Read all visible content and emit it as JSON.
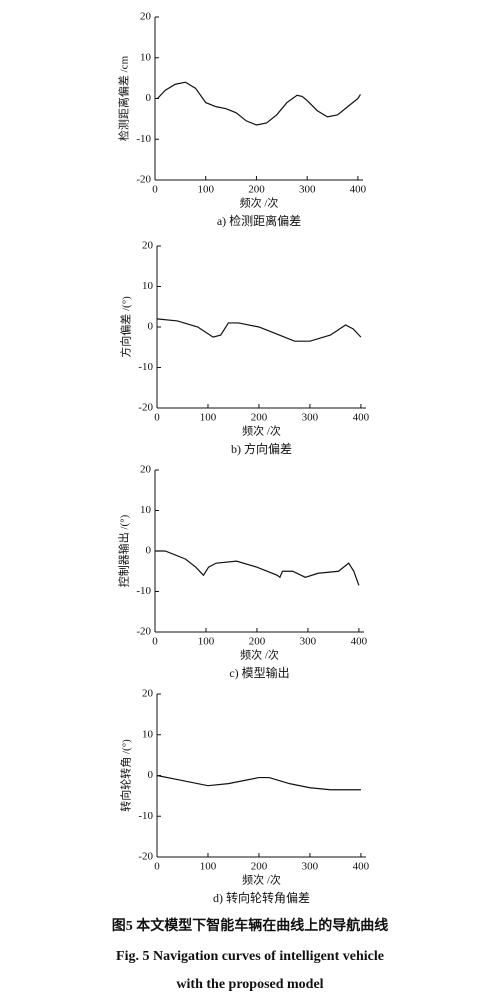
{
  "chart_data": [
    {
      "type": "line",
      "ylabel": "检测距离偏差 /cm",
      "xlabel": "频次 /次",
      "caption": "a) 检测距离偏差",
      "x": [
        5,
        20,
        40,
        60,
        80,
        100,
        120,
        140,
        160,
        180,
        200,
        220,
        240,
        260,
        280,
        290,
        300,
        320,
        340,
        360,
        380,
        400,
        405
      ],
      "values": [
        0,
        2,
        3.5,
        4,
        2.5,
        -1,
        -2,
        -2.5,
        -3.5,
        -5.5,
        -6.5,
        -6,
        -4,
        -1,
        0.8,
        0.5,
        -0.5,
        -3,
        -4.5,
        -4,
        -2,
        0,
        1
      ],
      "color": "#111111",
      "xlim": [
        0,
        410
      ],
      "ylim": [
        -20,
        20
      ],
      "xticks": [
        0,
        100,
        200,
        300,
        400
      ],
      "yticks": [
        20,
        10,
        0,
        -10,
        -20
      ]
    },
    {
      "type": "line",
      "ylabel": "方向偏差 /(°)",
      "xlabel": "频次 /次",
      "caption": "b) 方向偏差",
      "x": [
        0,
        40,
        80,
        110,
        125,
        140,
        160,
        200,
        240,
        270,
        300,
        340,
        370,
        385,
        400
      ],
      "values": [
        2,
        1.5,
        0,
        -2.5,
        -2,
        1,
        1,
        0,
        -2,
        -3.5,
        -3.5,
        -2,
        0.5,
        -0.5,
        -2.5
      ],
      "color": "#111111",
      "xlim": [
        0,
        410
      ],
      "ylim": [
        -20,
        20
      ],
      "xticks": [
        0,
        100,
        200,
        300,
        400
      ],
      "yticks": [
        20,
        10,
        0,
        -10,
        -20
      ]
    },
    {
      "type": "line",
      "ylabel": "控制器输出 /(°)",
      "xlabel": "频次 /次",
      "caption": "c) 模型输出",
      "x": [
        0,
        20,
        60,
        80,
        95,
        105,
        120,
        160,
        200,
        240,
        245,
        250,
        270,
        295,
        320,
        360,
        380,
        390,
        400
      ],
      "values": [
        0,
        0,
        -2,
        -4,
        -6,
        -4,
        -3,
        -2.5,
        -4,
        -6,
        -6.5,
        -5,
        -5,
        -6.5,
        -5.5,
        -5,
        -3,
        -5,
        -8.5
      ],
      "color": "#111111",
      "xlim": [
        0,
        410
      ],
      "ylim": [
        -20,
        20
      ],
      "xticks": [
        0,
        100,
        200,
        300,
        400
      ],
      "yticks": [
        20,
        10,
        0,
        -10,
        -20
      ]
    },
    {
      "type": "line",
      "ylabel": "转向轮转角 /(°)",
      "xlabel": "频次 /次",
      "caption": "d) 转向轮转角偏差",
      "x": [
        0,
        40,
        100,
        140,
        200,
        220,
        260,
        300,
        340,
        400
      ],
      "values": [
        0,
        -1,
        -2.5,
        -2,
        -0.5,
        -0.5,
        -2,
        -3,
        -3.5,
        -3.5
      ],
      "color": "#111111",
      "xlim": [
        0,
        410
      ],
      "ylim": [
        -20,
        20
      ],
      "xticks": [
        0,
        100,
        200,
        300,
        400
      ],
      "yticks": [
        20,
        10,
        0,
        -10,
        -20
      ]
    }
  ],
  "figure_caption": {
    "zh": "图5  本文模型下智能车辆在曲线上的导航曲线",
    "en_line1": "Fig. 5  Navigation curves of intelligent vehicle",
    "en_line2": "with the proposed model"
  }
}
